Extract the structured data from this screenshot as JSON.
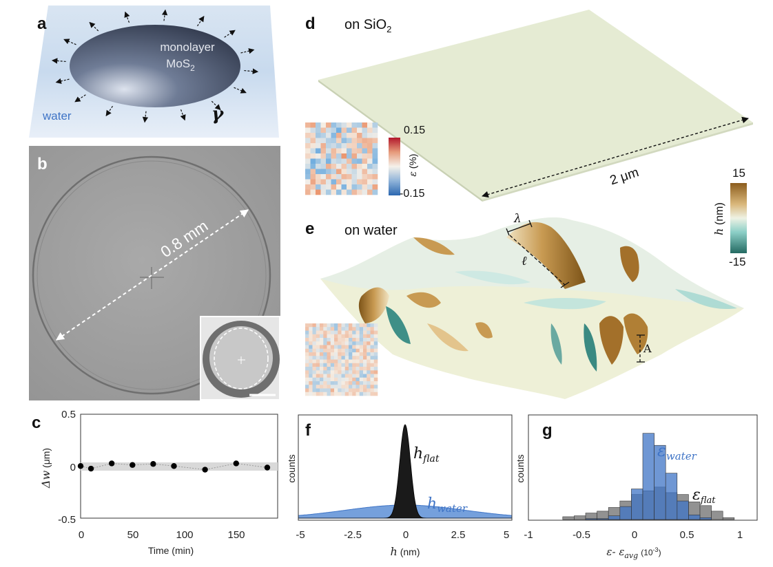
{
  "panels": {
    "a": {
      "label": "a",
      "material_line1": "monolayer",
      "material_line2": "MoS",
      "material_sub": "2",
      "medium": "water",
      "tension_symbol": "γ"
    },
    "b": {
      "label": "b",
      "diameter": "0.8 mm"
    },
    "c": {
      "label": "c",
      "xlabel_prefix": "Time",
      "xlabel_unit": "(min)",
      "ylabel": "Δw",
      "ylabel_unit": "(μm)",
      "xticks": [
        "0",
        "50",
        "100",
        "150"
      ],
      "yticks": [
        "0.5",
        "0",
        "-0.5"
      ]
    },
    "d": {
      "label": "d",
      "title": "on SiO",
      "title_sub": "2",
      "scale": "2 μm",
      "strain_max": "0.15",
      "strain_min": "-0.15",
      "strain_label": "ε",
      "strain_unit": "(%)"
    },
    "e": {
      "label": "e",
      "title": "on water",
      "lambda": "λ",
      "ell": "ℓ",
      "amplitude": "A",
      "height_max": "15",
      "height_min": "-15",
      "height_label": "h",
      "height_unit": "(nm)"
    },
    "f": {
      "label": "f",
      "ylabel": "counts",
      "xlabel": "h",
      "xlabel_unit": "(nm)",
      "xticks": [
        "-5",
        "-2.5",
        "0",
        "2.5",
        "5"
      ],
      "flat_main": "h",
      "flat_sub": "flat",
      "water_main": "h",
      "water_sub": "water"
    },
    "g": {
      "label": "g",
      "ylabel": "counts",
      "xlabel_a": "ε",
      "xlabel_mid": "- ε",
      "xlabel_sub": "avg",
      "xlabel_unit": "(10",
      "xlabel_exp": "-3",
      "xlabel_close": ")",
      "xticks": [
        "-1",
        "-0.5",
        "0",
        "0.5",
        "1"
      ],
      "water_main": "ε",
      "water_sub": "water",
      "flat_main": "ε",
      "flat_sub": "flat"
    }
  },
  "colors": {
    "water_blue": "#3f74c6",
    "flat_gray": "#8c8c8c",
    "surface_flat": "#e6ecd3",
    "peak_brown": "#a8772d",
    "trough_teal": "#2f7f78"
  },
  "chart_data": [
    {
      "type": "scatter",
      "panel": "c",
      "xlabel": "Time (min)",
      "ylabel": "Δw (μm)",
      "x": [
        0,
        10,
        30,
        50,
        70,
        90,
        120,
        150,
        180
      ],
      "y": [
        0.005,
        -0.02,
        0.03,
        0.015,
        0.025,
        0.005,
        -0.03,
        0.03,
        -0.01
      ],
      "xlim": [
        0,
        190
      ],
      "ylim": [
        -0.5,
        0.5
      ]
    },
    {
      "type": "area",
      "panel": "f",
      "xlabel": "h (nm)",
      "ylabel": "counts",
      "xlim": [
        -5,
        5
      ],
      "series": [
        {
          "name": "h_flat",
          "distribution": "gaussian",
          "mean": 0,
          "std": 0.25,
          "peak": 1.0
        },
        {
          "name": "h_water",
          "distribution": "gaussian",
          "mean": 0,
          "std": 2.8,
          "peak": 0.14
        }
      ]
    },
    {
      "type": "bar",
      "panel": "g",
      "xlabel": "ε - ε_avg (10^-3)",
      "ylabel": "counts",
      "xlim": [
        -1,
        1
      ],
      "bin_edges": [
        -0.7,
        -0.6,
        -0.5,
        -0.4,
        -0.3,
        -0.2,
        -0.1,
        0,
        0.1,
        0.2,
        0.3,
        0.4,
        0.5,
        0.6,
        0.7,
        0.8
      ],
      "series": [
        {
          "name": "ε_water",
          "values": [
            0,
            0,
            1,
            1,
            4,
            14,
            33,
            93,
            80,
            50,
            20,
            5,
            2,
            0,
            0
          ]
        },
        {
          "name": "ε_flat",
          "values": [
            3,
            4,
            7,
            9,
            13,
            20,
            27,
            31,
            35,
            29,
            27,
            19,
            15,
            9,
            2
          ]
        }
      ]
    }
  ]
}
